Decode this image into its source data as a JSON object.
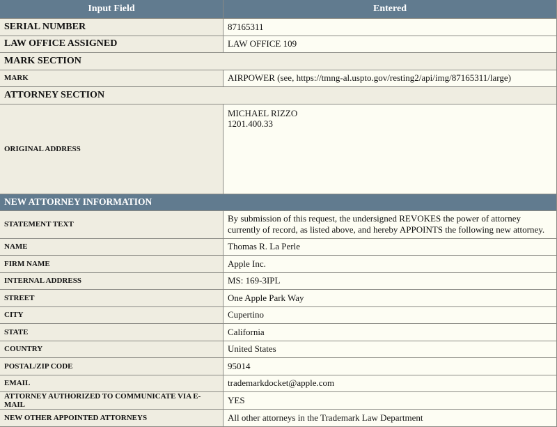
{
  "headers": {
    "field": "Input Field",
    "entered": "Entered"
  },
  "serial": {
    "label": "SERIAL NUMBER",
    "value": "87165311"
  },
  "law_office": {
    "label": "LAW OFFICE ASSIGNED",
    "value": "LAW OFFICE 109"
  },
  "mark_section": "MARK SECTION",
  "mark": {
    "label": "MARK",
    "value": "AIRPOWER (see, https://tmng-al.uspto.gov/resting2/api/img/87165311/large)"
  },
  "attorney_section": "ATTORNEY SECTION",
  "original_address": {
    "label": "ORIGINAL ADDRESS",
    "line1": "MICHAEL RIZZO",
    "line2": "1201.400.33"
  },
  "new_attorney_section": "NEW ATTORNEY INFORMATION",
  "rows": [
    {
      "label": "STATEMENT TEXT",
      "value": "By submission of this request, the undersigned REVOKES the power of attorney currently of record, as listed above, and hereby APPOINTS the following new attorney."
    },
    {
      "label": "NAME",
      "value": "Thomas R. La Perle"
    },
    {
      "label": "FIRM NAME",
      "value": "Apple Inc."
    },
    {
      "label": "INTERNAL ADDRESS",
      "value": "MS: 169-3IPL"
    },
    {
      "label": "STREET",
      "value": "One Apple Park Way"
    },
    {
      "label": "CITY",
      "value": "Cupertino"
    },
    {
      "label": "STATE",
      "value": "California"
    },
    {
      "label": "COUNTRY",
      "value": "United States"
    },
    {
      "label": "POSTAL/ZIP CODE",
      "value": "95014"
    },
    {
      "label": "EMAIL",
      "value": "trademarkdocket@apple.com"
    },
    {
      "label": "ATTORNEY AUTHORIZED TO COMMUNICATE VIA E-MAIL",
      "value": "YES"
    },
    {
      "label": "NEW OTHER APPOINTED ATTORNEYS",
      "value": "All other attorneys in the Trademark Law Department"
    }
  ]
}
